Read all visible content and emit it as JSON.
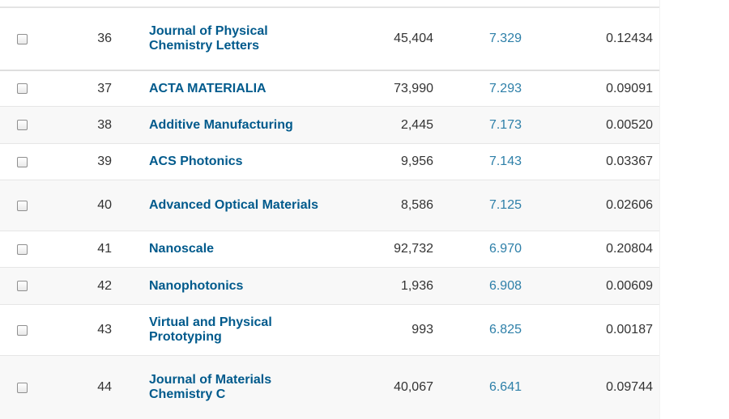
{
  "rows": [
    {
      "rank": "36",
      "title": "Journal of Physical Chemistry Letters",
      "cites": "45,404",
      "jif": "7.329",
      "eigenfactor": "0.12434"
    },
    {
      "rank": "37",
      "title": "ACTA MATERIALIA",
      "cites": "73,990",
      "jif": "7.293",
      "eigenfactor": "0.09091"
    },
    {
      "rank": "38",
      "title": "Additive Manufacturing",
      "cites": "2,445",
      "jif": "7.173",
      "eigenfactor": "0.00520"
    },
    {
      "rank": "39",
      "title": "ACS Photonics",
      "cites": "9,956",
      "jif": "7.143",
      "eigenfactor": "0.03367"
    },
    {
      "rank": "40",
      "title": "Advanced Optical Materials",
      "cites": "8,586",
      "jif": "7.125",
      "eigenfactor": "0.02606"
    },
    {
      "rank": "41",
      "title": "Nanoscale",
      "cites": "92,732",
      "jif": "6.970",
      "eigenfactor": "0.20804"
    },
    {
      "rank": "42",
      "title": "Nanophotonics",
      "cites": "1,936",
      "jif": "6.908",
      "eigenfactor": "0.00609"
    },
    {
      "rank": "43",
      "title": "Virtual and Physical Prototyping",
      "cites": "993",
      "jif": "6.825",
      "eigenfactor": "0.00187"
    },
    {
      "rank": "44",
      "title": "Journal of Materials Chemistry C",
      "cites": "40,067",
      "jif": "6.641",
      "eigenfactor": "0.09744"
    }
  ]
}
